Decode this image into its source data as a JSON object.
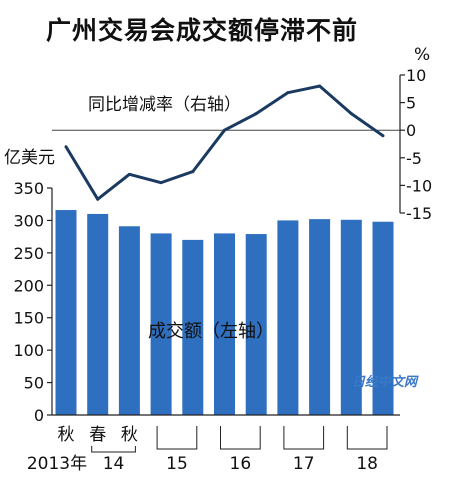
{
  "chart_data": {
    "type": "bar+line",
    "title": "广州交易会成交额停滞不前",
    "categories": [
      "2013秋",
      "2014春",
      "2014秋",
      "2015春",
      "2015秋",
      "2016春",
      "2016秋",
      "2017春",
      "2017秋",
      "2018春",
      "2018秋"
    ],
    "x_labels": {
      "season_labels": [
        "秋",
        "春",
        "秋"
      ],
      "year_labels": [
        "2013年",
        "14",
        "15",
        "16",
        "17",
        "18"
      ]
    },
    "series": [
      {
        "name": "成交额（左轴）",
        "kind": "bar",
        "axis": "left",
        "color": "#2e6fc0",
        "values": [
          316,
          310,
          291,
          280,
          270,
          280,
          279,
          300,
          302,
          301,
          298
        ]
      },
      {
        "name": "同比增减率（右轴）",
        "kind": "line",
        "axis": "right",
        "color": "#1a3a62",
        "values": [
          -3,
          -12.5,
          -8,
          -9.5,
          -7.5,
          0,
          3,
          6.8,
          8,
          3,
          -1
        ]
      }
    ],
    "left_axis": {
      "unit": "亿美元",
      "ticks": [
        "0",
        "50",
        "100",
        "150",
        "200",
        "250",
        "300",
        "350"
      ],
      "ylim": [
        0,
        350
      ]
    },
    "right_axis": {
      "unit": "%",
      "ticks": [
        "10",
        "5",
        "0",
        "-5",
        "-10",
        "-15"
      ],
      "ylim": [
        -15,
        10
      ]
    },
    "watermark": "日经中文网",
    "colors": {
      "bar": "#2e6fc0",
      "line": "#1a3a62",
      "zero_line": "#444444"
    }
  }
}
